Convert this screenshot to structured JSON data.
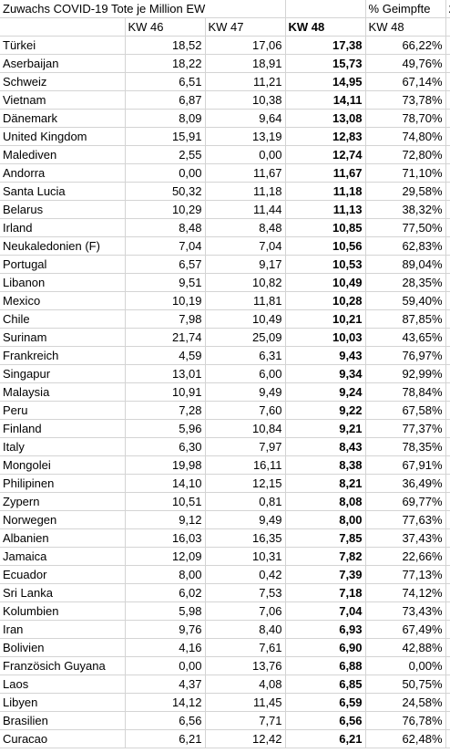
{
  "header": {
    "title": "Zuwachs COVID-19 Tote je Million EW",
    "pct_title": "% Geimpfte",
    "col_kw46": "KW 46",
    "col_kw47": "KW 47",
    "col_kw48": "KW 48",
    "col_pct_kw48": "KW 48",
    "edge_text": "2"
  },
  "rows": [
    {
      "land": "Türkei",
      "kw46": "18,52",
      "kw47": "17,06",
      "kw48": "17,38",
      "pct": "66,22%"
    },
    {
      "land": "Aserbaijan",
      "kw46": "18,22",
      "kw47": "18,91",
      "kw48": "15,73",
      "pct": "49,76%"
    },
    {
      "land": "Schweiz",
      "kw46": "6,51",
      "kw47": "11,21",
      "kw48": "14,95",
      "pct": "67,14%"
    },
    {
      "land": "Vietnam",
      "kw46": "6,87",
      "kw47": "10,38",
      "kw48": "14,11",
      "pct": "73,78%"
    },
    {
      "land": "Dänemark",
      "kw46": "8,09",
      "kw47": "9,64",
      "kw48": "13,08",
      "pct": "78,70%"
    },
    {
      "land": "United Kingdom",
      "kw46": "15,91",
      "kw47": "13,19",
      "kw48": "12,83",
      "pct": "74,80%"
    },
    {
      "land": "Malediven",
      "kw46": "2,55",
      "kw47": "0,00",
      "kw48": "12,74",
      "pct": "72,80%"
    },
    {
      "land": "Andorra",
      "kw46": "0,00",
      "kw47": "11,67",
      "kw48": "11,67",
      "pct": "71,10%"
    },
    {
      "land": "Santa Lucia",
      "kw46": "50,32",
      "kw47": "11,18",
      "kw48": "11,18",
      "pct": "29,58%"
    },
    {
      "land": "Belarus",
      "kw46": "10,29",
      "kw47": "11,44",
      "kw48": "11,13",
      "pct": "38,32%"
    },
    {
      "land": "Irland",
      "kw46": "8,48",
      "kw47": "8,48",
      "kw48": "10,85",
      "pct": "77,50%"
    },
    {
      "land": "Neukaledonien (F)",
      "kw46": "7,04",
      "kw47": "7,04",
      "kw48": "10,56",
      "pct": "62,83%"
    },
    {
      "land": "Portugal",
      "kw46": "6,57",
      "kw47": "9,17",
      "kw48": "10,53",
      "pct": "89,04%"
    },
    {
      "land": "Libanon",
      "kw46": "9,51",
      "kw47": "10,82",
      "kw48": "10,49",
      "pct": "28,35%"
    },
    {
      "land": "Mexico",
      "kw46": "10,19",
      "kw47": "11,81",
      "kw48": "10,28",
      "pct": "59,40%"
    },
    {
      "land": "Chile",
      "kw46": "7,98",
      "kw47": "10,49",
      "kw48": "10,21",
      "pct": "87,85%"
    },
    {
      "land": "Surinam",
      "kw46": "21,74",
      "kw47": "25,09",
      "kw48": "10,03",
      "pct": "43,65%"
    },
    {
      "land": "Frankreich",
      "kw46": "4,59",
      "kw47": "6,31",
      "kw48": "9,43",
      "pct": "76,97%"
    },
    {
      "land": "Singapur",
      "kw46": "13,01",
      "kw47": "6,00",
      "kw48": "9,34",
      "pct": "92,99%"
    },
    {
      "land": "Malaysia",
      "kw46": "10,91",
      "kw47": "9,49",
      "kw48": "9,24",
      "pct": "78,84%"
    },
    {
      "land": "Peru",
      "kw46": "7,28",
      "kw47": "7,60",
      "kw48": "9,22",
      "pct": "67,58%"
    },
    {
      "land": "Finland",
      "kw46": "5,96",
      "kw47": "10,84",
      "kw48": "9,21",
      "pct": "77,37%"
    },
    {
      "land": "Italy",
      "kw46": "6,30",
      "kw47": "7,97",
      "kw48": "8,43",
      "pct": "78,35%"
    },
    {
      "land": "Mongolei",
      "kw46": "19,98",
      "kw47": "16,11",
      "kw48": "8,38",
      "pct": "67,91%"
    },
    {
      "land": "Philipinen",
      "kw46": "14,10",
      "kw47": "12,15",
      "kw48": "8,21",
      "pct": "36,49%"
    },
    {
      "land": "Zypern",
      "kw46": "10,51",
      "kw47": "0,81",
      "kw48": "8,08",
      "pct": "69,77%"
    },
    {
      "land": "Norwegen",
      "kw46": "9,12",
      "kw47": "9,49",
      "kw48": "8,00",
      "pct": "77,63%"
    },
    {
      "land": "Albanien",
      "kw46": "16,03",
      "kw47": "16,35",
      "kw48": "7,85",
      "pct": "37,43%"
    },
    {
      "land": "Jamaica",
      "kw46": "12,09",
      "kw47": "10,31",
      "kw48": "7,82",
      "pct": "22,66%"
    },
    {
      "land": "Ecuador",
      "kw46": "8,00",
      "kw47": "0,42",
      "kw48": "7,39",
      "pct": "77,13%"
    },
    {
      "land": "Sri Lanka",
      "kw46": "6,02",
      "kw47": "7,53",
      "kw48": "7,18",
      "pct": "74,12%"
    },
    {
      "land": "Kolumbien",
      "kw46": "5,98",
      "kw47": "7,06",
      "kw48": "7,04",
      "pct": "73,43%"
    },
    {
      "land": "Iran",
      "kw46": "9,76",
      "kw47": "8,40",
      "kw48": "6,93",
      "pct": "67,49%"
    },
    {
      "land": "Bolivien",
      "kw46": "4,16",
      "kw47": "7,61",
      "kw48": "6,90",
      "pct": "42,88%"
    },
    {
      "land": "Französich Guyana",
      "kw46": "0,00",
      "kw47": "13,76",
      "kw48": "6,88",
      "pct": "0,00%"
    },
    {
      "land": "Laos",
      "kw46": "4,37",
      "kw47": "4,08",
      "kw48": "6,85",
      "pct": "50,75%"
    },
    {
      "land": "Libyen",
      "kw46": "14,12",
      "kw47": "11,45",
      "kw48": "6,59",
      "pct": "24,58%"
    },
    {
      "land": "Brasilien",
      "kw46": "6,56",
      "kw47": "7,71",
      "kw48": "6,56",
      "pct": "76,78%"
    },
    {
      "land": "Curacao",
      "kw46": "6,21",
      "kw47": "12,42",
      "kw48": "6,21",
      "pct": "62,48%"
    }
  ],
  "colors": {
    "grid": "#d4d4d4",
    "edge_highlight": "#e0b000"
  }
}
